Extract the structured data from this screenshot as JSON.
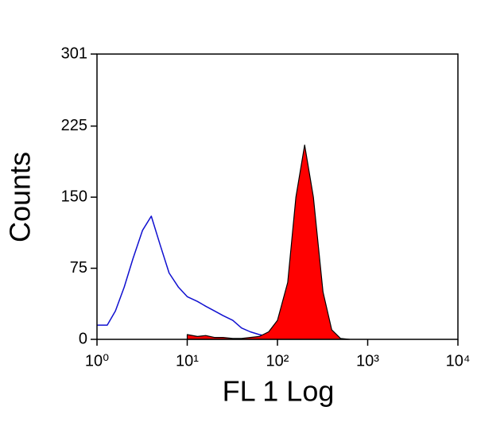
{
  "chart_data": {
    "type": "histogram-overlay",
    "x_label": "FL 1 Log",
    "y_label": "Counts",
    "xscale": "log",
    "xlim": [
      1,
      10000
    ],
    "xticks": [
      {
        "value": 1,
        "label": "10⁰"
      },
      {
        "value": 10,
        "label": "10¹"
      },
      {
        "value": 100,
        "label": "10²"
      },
      {
        "value": 1000,
        "label": "10³"
      },
      {
        "value": 10000,
        "label": "10⁴"
      }
    ],
    "ylim": [
      0,
      301
    ],
    "yticks": [
      0,
      75,
      150,
      225,
      301
    ],
    "x": [
      1,
      1.3,
      1.6,
      2,
      2.5,
      3.2,
      4,
      5,
      6.3,
      8,
      10,
      13,
      16,
      20,
      25,
      32,
      40,
      50,
      63,
      80,
      100,
      130,
      160,
      200,
      250,
      320,
      400,
      500,
      630
    ],
    "series": [
      {
        "color": "#1010d0",
        "filled": false,
        "values": [
          15,
          15,
          30,
          55,
          85,
          115,
          130,
          100,
          70,
          55,
          45,
          40,
          35,
          30,
          25,
          20,
          12,
          8,
          5,
          3,
          2,
          null,
          null,
          null,
          null,
          null,
          null,
          null,
          null
        ]
      },
      {
        "color": "#ff0000",
        "filled": true,
        "values": [
          null,
          null,
          null,
          null,
          null,
          null,
          null,
          null,
          null,
          null,
          5,
          3,
          4,
          2,
          2,
          1,
          1,
          2,
          3,
          8,
          20,
          60,
          150,
          205,
          150,
          50,
          10,
          1,
          0
        ]
      }
    ]
  }
}
